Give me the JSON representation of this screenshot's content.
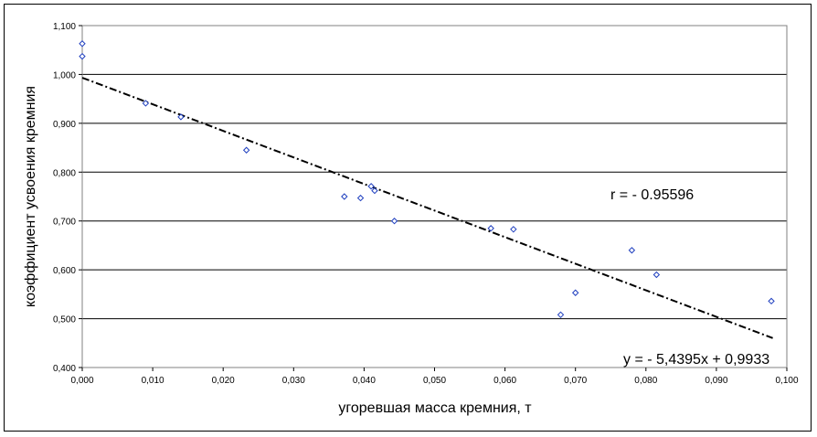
{
  "chart_data": {
    "type": "scatter",
    "xlabel": "угоревшая масса кремния, т",
    "ylabel": "коэффициент усвоения кремния",
    "xlim": [
      0,
      0.1
    ],
    "ylim": [
      0.4,
      1.1
    ],
    "x_ticks": [
      "0,000",
      "0,010",
      "0,020",
      "0,030",
      "0,040",
      "0,050",
      "0,060",
      "0,070",
      "0,080",
      "0,090",
      "0,100"
    ],
    "y_ticks": [
      "0,400",
      "0,500",
      "0,600",
      "0,700",
      "0,800",
      "0,900",
      "1,000",
      "1,100"
    ],
    "grid": "horizontal",
    "marker_color": "#1f3fbf",
    "trendline_color": "#000000",
    "series": [
      {
        "points": [
          [
            0.0,
            1.063
          ],
          [
            0.0,
            1.037
          ],
          [
            0.009,
            0.941
          ],
          [
            0.014,
            0.913
          ],
          [
            0.0233,
            0.845
          ],
          [
            0.0372,
            0.75
          ],
          [
            0.0395,
            0.747
          ],
          [
            0.041,
            0.771
          ],
          [
            0.0415,
            0.762
          ],
          [
            0.0443,
            0.7
          ],
          [
            0.058,
            0.685
          ],
          [
            0.0612,
            0.683
          ],
          [
            0.0679,
            0.508
          ],
          [
            0.07,
            0.553
          ],
          [
            0.078,
            0.64
          ],
          [
            0.0815,
            0.59
          ],
          [
            0.0978,
            0.536
          ]
        ]
      }
    ],
    "trendline": {
      "slope": -5.4395,
      "intercept": 0.9933,
      "x_range": [
        0,
        0.098
      ]
    },
    "annotations": {
      "r": "r = - 0.95596",
      "equation": "y = - 5,4395x + 0,9933"
    }
  }
}
